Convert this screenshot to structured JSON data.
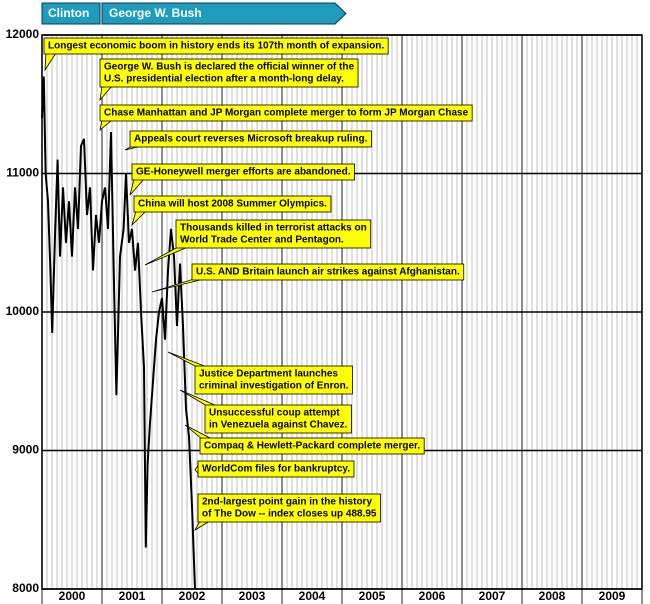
{
  "chart_data": {
    "type": "line",
    "presidents": [
      "Clinton",
      "George W. Bush"
    ],
    "x": [
      2000.0,
      2000.03,
      2000.06,
      2000.1,
      2000.14,
      2000.17,
      2000.22,
      2000.26,
      2000.3,
      2000.35,
      2000.4,
      2000.45,
      2000.5,
      2000.55,
      2000.6,
      2000.65,
      2000.7,
      2000.75,
      2000.8,
      2000.85,
      2000.9,
      2000.95,
      2001.0,
      2001.05,
      2001.1,
      2001.15,
      2001.2,
      2001.24,
      2001.3,
      2001.36,
      2001.4,
      2001.45,
      2001.5,
      2001.55,
      2001.6,
      2001.65,
      2001.7,
      2001.73,
      2001.76,
      2001.8,
      2001.85,
      2001.9,
      2001.95,
      2002.0,
      2002.05,
      2002.1,
      2002.15,
      2002.2,
      2002.25,
      2002.3,
      2002.35,
      2002.4,
      2002.45,
      2002.5,
      2002.55
    ],
    "values": [
      11400,
      11700,
      11000,
      10800,
      10300,
      9850,
      10600,
      11100,
      10400,
      10900,
      10500,
      10800,
      10400,
      10900,
      10600,
      11200,
      11250,
      10700,
      10900,
      10300,
      10700,
      10500,
      10800,
      10900,
      10600,
      11300,
      10200,
      9400,
      10400,
      10600,
      11000,
      10500,
      10600,
      10300,
      10500,
      10000,
      9600,
      8300,
      8900,
      9200,
      9500,
      9800,
      10000,
      10100,
      9800,
      10300,
      10600,
      10400,
      9900,
      10350,
      9900,
      9300,
      9100,
      8600,
      8000
    ],
    "color": "#000000",
    "xlim": [
      2000,
      2010
    ],
    "ylim": [
      8000,
      12000
    ],
    "yticks": [
      8000,
      9000,
      10000,
      11000,
      12000
    ],
    "xticks": [
      2000,
      2001,
      2002,
      2003,
      2004,
      2005,
      2006,
      2007,
      2008,
      2009,
      2010
    ],
    "categories": [
      "2000",
      "2001",
      "2002",
      "2003",
      "2004",
      "2005",
      "2006",
      "2007",
      "2008",
      "2009"
    ],
    "grid": true,
    "annotations": [
      [
        "Longest economic boom in history ends its 107th month of expansion."
      ],
      [
        "George W. Bush is declared the official winner of the",
        "U.S. presidential election after a month-long delay."
      ],
      [
        "Chase Manhattan and JP Morgan complete merger to form JP Morgan Chase"
      ],
      [
        "Appeals court reverses Microsoft breakup ruling."
      ],
      [
        "GE-Honeywell merger efforts are abandoned."
      ],
      [
        "China will host 2008 Summer Olympics."
      ],
      [
        "Thousands killed in terrorist attacks on",
        "World Trade Center and Pentagon."
      ],
      [
        "U.S. AND Britain launch air strikes against Afghanistan."
      ],
      [
        "Justice Department launches",
        "criminal investigation of Enron."
      ],
      [
        "Unsuccessful coup attempt",
        "in Venezuela against Chavez."
      ],
      [
        "Compaq & Hewlett-Packard complete merger."
      ],
      [
        "WorldCom files for bankruptcy."
      ],
      [
        "2nd-largest point gain in the history",
        "of The Dow -- index closes up 488.95"
      ]
    ]
  }
}
